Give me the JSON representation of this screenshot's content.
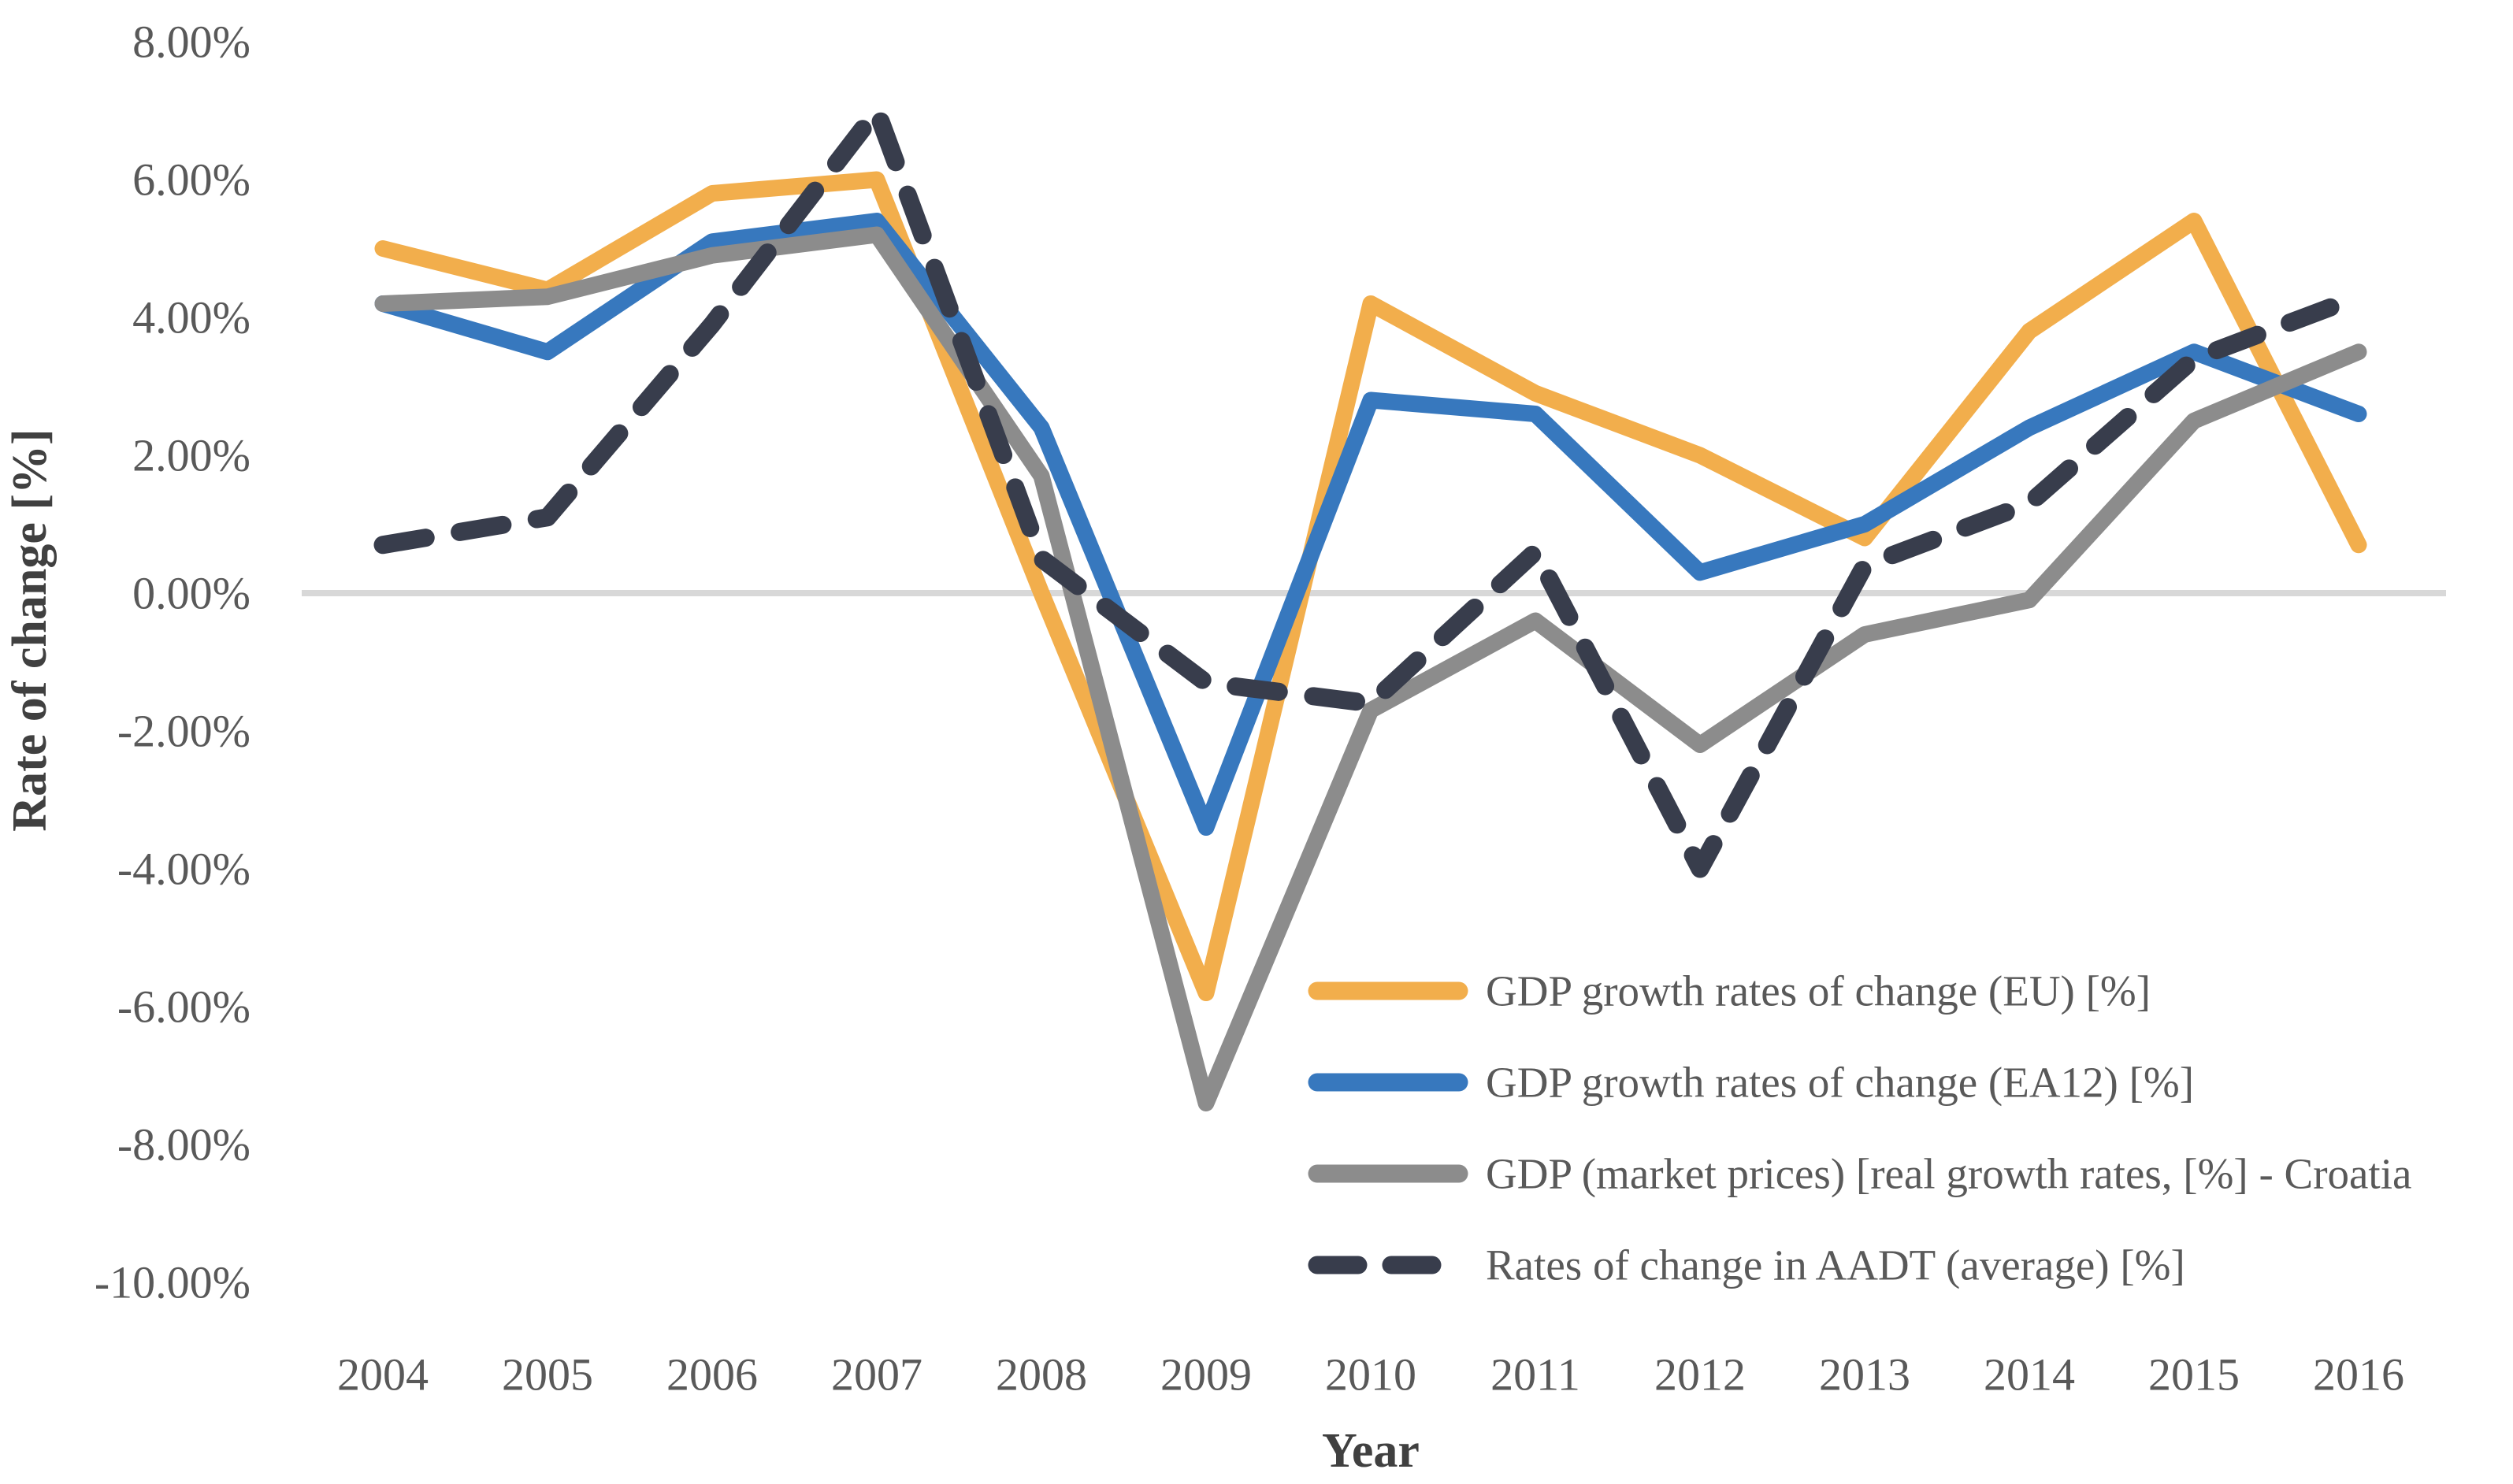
{
  "chart_data": {
    "type": "line",
    "title": "",
    "xlabel": "Year",
    "ylabel": "Rate of change [%]",
    "x_categories": [
      "2004",
      "2005",
      "2006",
      "2007",
      "2008",
      "2009",
      "2010",
      "2011",
      "2012",
      "2013",
      "2014",
      "2015",
      "2016"
    ],
    "y_tick_labels": [
      "8.00%",
      "6.00%",
      "4.00%",
      "2.00%",
      "0.00%",
      "-2.00%",
      "-4.00%",
      "-6.00%",
      "-8.00%",
      "-10.00%"
    ],
    "y_tick_values": [
      8,
      6,
      4,
      2,
      0,
      -2,
      -4,
      -6,
      -8,
      -10
    ],
    "ylim": [
      -10,
      8
    ],
    "grid": "zero-line-only",
    "legend_position": "inside-lower-right",
    "zero_line_color": "#D8D8D8",
    "text_color": "#595959",
    "series": [
      {
        "name": "GDP growth rates of change (EU) [%]",
        "style": "solid",
        "color": "#F2AE4C",
        "values": [
          5.0,
          4.4,
          5.8,
          6.0,
          0.0,
          -5.8,
          4.2,
          2.9,
          2.0,
          0.8,
          3.8,
          5.4,
          0.7
        ]
      },
      {
        "name": "GDP growth rates of change (EA12) [%]",
        "style": "solid",
        "color": "#3778BE",
        "values": [
          4.2,
          3.5,
          5.1,
          5.4,
          2.4,
          -3.4,
          2.8,
          2.6,
          0.3,
          1.0,
          2.4,
          3.5,
          2.6
        ]
      },
      {
        "name": "GDP (market prices) [real growth rates, [%] - Croatia",
        "style": "solid",
        "color": "#8C8C8C",
        "values": [
          4.2,
          4.3,
          4.9,
          5.2,
          1.7,
          -7.4,
          -1.7,
          -0.4,
          -2.2,
          -0.6,
          -0.1,
          2.5,
          3.5
        ]
      },
      {
        "name": "Rates of change in AADT (average) [%]",
        "style": "dashed",
        "color": "#383D4C",
        "values": [
          0.7,
          1.1,
          3.9,
          7.0,
          0.5,
          -1.3,
          -1.6,
          0.6,
          -4.0,
          0.4,
          1.3,
          3.4,
          4.3
        ]
      }
    ]
  }
}
